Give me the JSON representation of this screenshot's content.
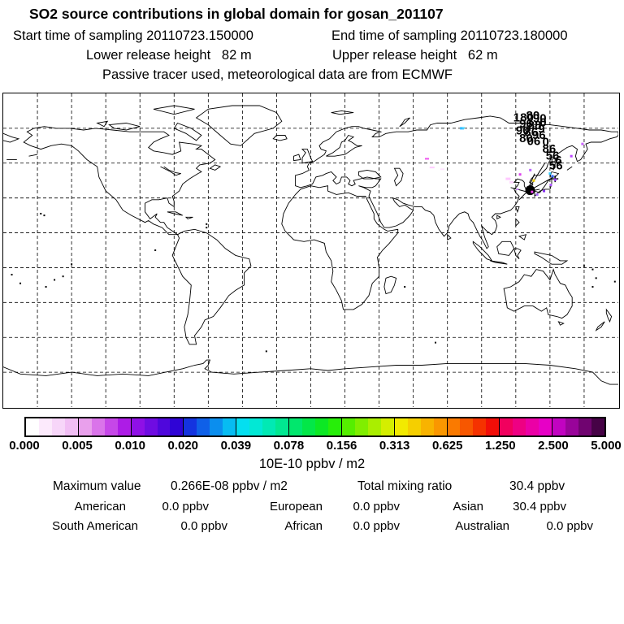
{
  "header": {
    "title": "SO2 source contributions in global domain for gosan_201107",
    "sampling": {
      "start": "Start time of sampling 20110723.150000",
      "end": "End time of sampling 20110723.180000"
    },
    "release": {
      "lower": "Lower release height   82 m",
      "upper": "Upper release height   62 m"
    },
    "tracer": "Passive tracer used, meteorological data are from ECMWF"
  },
  "chart_data": {
    "type": "heatmap",
    "subtype": "global-source-contribution-map",
    "site": "gosan_201107",
    "projection": "equirectangular",
    "lon_range": [
      -180,
      180
    ],
    "lat_range": [
      -90,
      90
    ],
    "grid_interval_deg": 20,
    "grid_style": "dashed",
    "colorbar": {
      "units": "10E-10 ppbv / m2",
      "tick_labels": [
        "0.000",
        "0.005",
        "0.010",
        "0.020",
        "0.039",
        "0.078",
        "0.156",
        "0.313",
        "0.625",
        "1.250",
        "2.500",
        "5.000"
      ],
      "cells_per_interval": 4,
      "cell_colors": [
        "#ffffff",
        "#fceafc",
        "#f7d6f9",
        "#f1bef4",
        "#e9a0ec",
        "#da74ea",
        "#c647e8",
        "#ad1ce6",
        "#8f10e6",
        "#6f0ce2",
        "#4f07dc",
        "#2f04d6",
        "#1433e0",
        "#0f60e8",
        "#0b8eee",
        "#07bcf2",
        "#04dff0",
        "#02e8d5",
        "#01e9b4",
        "#01e891",
        "#01e76d",
        "#03e748",
        "#0ce824",
        "#27ee09",
        "#55ee00",
        "#80ee00",
        "#aaee00",
        "#d4ee00",
        "#f2ea00",
        "#f5cf00",
        "#f8b300",
        "#fa9700",
        "#fa7a00",
        "#f75700",
        "#f53200",
        "#f20e08",
        "#f1005e",
        "#ee0083",
        "#eb00a6",
        "#e700c6",
        "#c103c1",
        "#99049a",
        "#700470",
        "#460246"
      ]
    },
    "overlays": {
      "receptor": {
        "name": "gosan",
        "lon": 126.5,
        "lat": 33.5
      },
      "plus_marker": {
        "lon": 143,
        "lat": 41
      },
      "trajectory_lines": [
        [
          131,
          44
        ],
        [
          137,
          50
        ],
        [
          142,
          42
        ],
        [
          117,
          36
        ],
        [
          134,
          35
        ],
        [
          122,
          29
        ]
      ],
      "trajectory_labels": [
        {
          "t": "180",
          "lon": 124.5,
          "lat": 74
        },
        {
          "t": "80",
          "lon": 130,
          "lat": 75
        },
        {
          "t": "90",
          "lon": 134,
          "lat": 73.5
        },
        {
          "t": "96",
          "lon": 126,
          "lat": 70.5
        },
        {
          "t": "88",
          "lon": 131,
          "lat": 69.5
        },
        {
          "t": "0",
          "lon": 136,
          "lat": 71
        },
        {
          "t": "90",
          "lon": 124,
          "lat": 66.5
        },
        {
          "t": "86",
          "lon": 129,
          "lat": 65.5
        },
        {
          "t": "96",
          "lon": 133.5,
          "lat": 64
        },
        {
          "t": "9",
          "lon": 135,
          "lat": 67.5
        },
        {
          "t": "80",
          "lon": 126,
          "lat": 62
        },
        {
          "t": "06",
          "lon": 130.5,
          "lat": 60.5
        },
        {
          "t": "0",
          "lon": 137.5,
          "lat": 60
        },
        {
          "t": "86",
          "lon": 139.5,
          "lat": 56
        },
        {
          "t": "56",
          "lon": 141.5,
          "lat": 52
        },
        {
          "t": "6",
          "lon": 145,
          "lat": 49.5
        },
        {
          "t": "56",
          "lon": 143.5,
          "lat": 46.5
        }
      ],
      "dots": [
        {
          "lon": 88.5,
          "lat": 70,
          "c": "#33bbff",
          "w": 5,
          "h": 3
        },
        {
          "lon": 89.5,
          "lat": 70.3,
          "c": "#66e0ff",
          "w": 3,
          "h": 2
        },
        {
          "lon": 68,
          "lat": 52.5,
          "c": "#ee55ee",
          "w": 5,
          "h": 2
        },
        {
          "lon": 71,
          "lat": 47.5,
          "c": "#ffccff",
          "w": 6,
          "h": 2
        },
        {
          "lon": 77,
          "lat": 46.5,
          "c": "#ffe4ff",
          "w": 5,
          "h": 2
        },
        {
          "lon": 115.5,
          "lat": 41,
          "c": "#ffc8ff",
          "w": 6,
          "h": 3
        },
        {
          "lon": 117.5,
          "lat": 39,
          "c": "#ffd8ff",
          "w": 5,
          "h": 3
        },
        {
          "lon": 122.5,
          "lat": 43.5,
          "c": "#dd44ee",
          "w": 3,
          "h": 3
        },
        {
          "lon": 128.5,
          "lat": 46,
          "c": "#bb66ff",
          "w": 3,
          "h": 3
        },
        {
          "lon": 130.5,
          "lat": 40,
          "c": "#eecc00",
          "w": 3,
          "h": 3
        },
        {
          "lon": 140,
          "lat": 44,
          "c": "#33ccff",
          "w": 3,
          "h": 3
        },
        {
          "lon": 141.5,
          "lat": 42.5,
          "c": "#3366ff",
          "w": 3,
          "h": 3
        },
        {
          "lon": 143,
          "lat": 40.5,
          "c": "#9933ff",
          "w": 3,
          "h": 3
        },
        {
          "lon": 140.5,
          "lat": 37.5,
          "c": "#aa55ff",
          "w": 3,
          "h": 3
        },
        {
          "lon": 136.5,
          "lat": 34,
          "c": "#8833ee",
          "w": 3,
          "h": 3
        },
        {
          "lon": 132.5,
          "lat": 32,
          "c": "#aa66ff",
          "w": 3,
          "h": 3
        },
        {
          "lon": 129.5,
          "lat": 33.5,
          "c": "#ee44ee",
          "w": 3,
          "h": 3
        },
        {
          "lon": 121,
          "lat": 35,
          "c": "#cc88ff",
          "w": 3,
          "h": 2
        },
        {
          "lon": 152.5,
          "lat": 54,
          "c": "#bb44ff",
          "w": 3,
          "h": 3
        },
        {
          "lon": 159,
          "lat": 61,
          "c": "#cc66ff",
          "w": 3,
          "h": 3
        }
      ]
    },
    "stats": {
      "maximum": {
        "label": "Maximum value",
        "value": "0.266E-08 ppbv / m2"
      },
      "total": {
        "label": "Total mixing ratio",
        "value": "30.4 ppbv"
      },
      "regions": [
        {
          "label": "American",
          "value": "0.0 ppbv"
        },
        {
          "label": "European",
          "value": "0.0 ppbv"
        },
        {
          "label": "Asian",
          "value": "30.4 ppbv"
        },
        {
          "label": "South American",
          "value": "0.0 ppbv"
        },
        {
          "label": "African",
          "value": "0.0 ppbv"
        },
        {
          "label": "Australian",
          "value": "0.0 ppbv"
        }
      ]
    }
  }
}
